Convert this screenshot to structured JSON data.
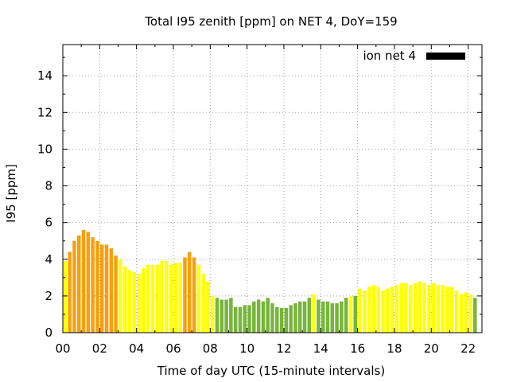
{
  "chart_data": {
    "type": "bar",
    "title": "Total I95 zenith [ppm] on NET 4, DoY=159",
    "xlabel": "Time of day UTC (15-minute intervals)",
    "ylabel": "I95 [ppm]",
    "xlim": [
      0,
      22.75
    ],
    "ylim": [
      0,
      15.7
    ],
    "x_ticks": [
      "00",
      "02",
      "04",
      "06",
      "08",
      "10",
      "12",
      "14",
      "16",
      "18",
      "20",
      "22"
    ],
    "x_tick_values": [
      0,
      2,
      4,
      6,
      8,
      10,
      12,
      14,
      16,
      18,
      20,
      22
    ],
    "y_ticks": [
      "0",
      "2",
      "4",
      "6",
      "8",
      "10",
      "12",
      "14"
    ],
    "y_tick_values": [
      0,
      2,
      4,
      6,
      8,
      10,
      12,
      14
    ],
    "grid": true,
    "legend": {
      "label": "ion net 4",
      "placement": "top-right",
      "color": "#000000"
    },
    "level_colors": {
      "green": "#77b53b",
      "yellow": "#ffff00",
      "orange": "#f5a00f"
    },
    "series": [
      {
        "interval_hours": 0.25,
        "start_hour": 0.25,
        "values": [
          3.9,
          4.4,
          5.0,
          5.3,
          5.6,
          5.5,
          5.2,
          5.0,
          4.8,
          4.8,
          4.6,
          4.2,
          4.0,
          3.6,
          3.4,
          3.3,
          3.2,
          3.5,
          3.7,
          3.7,
          3.7,
          3.9,
          3.9,
          3.7,
          3.8,
          3.8,
          4.1,
          4.4,
          4.1,
          3.7,
          3.2,
          2.8,
          2.0,
          1.9,
          1.8,
          1.8,
          1.9,
          1.4,
          1.4,
          1.5,
          1.5,
          1.7,
          1.8,
          1.7,
          1.9,
          1.6,
          1.4,
          1.35,
          1.35,
          1.5,
          1.6,
          1.7,
          1.7,
          1.9,
          2.1,
          1.8,
          1.7,
          1.7,
          1.6,
          1.6,
          1.7,
          1.9,
          2.0,
          2.0,
          2.4,
          2.3,
          2.5,
          2.6,
          2.5,
          2.3,
          2.4,
          2.5,
          2.6,
          2.7,
          2.7,
          2.6,
          2.7,
          2.8,
          2.7,
          2.6,
          2.7,
          2.6,
          2.6,
          2.5,
          2.5,
          2.3,
          2.1,
          2.2,
          2.1,
          1.9
        ],
        "levels": [
          "yellow",
          "orange",
          "orange",
          "orange",
          "orange",
          "orange",
          "orange",
          "orange",
          "orange",
          "orange",
          "orange",
          "orange",
          "yellow",
          "yellow",
          "yellow",
          "yellow",
          "yellow",
          "yellow",
          "yellow",
          "yellow",
          "yellow",
          "yellow",
          "yellow",
          "yellow",
          "yellow",
          "yellow",
          "orange",
          "orange",
          "orange",
          "yellow",
          "yellow",
          "yellow",
          "yellow",
          "green",
          "green",
          "green",
          "green",
          "green",
          "green",
          "green",
          "green",
          "green",
          "green",
          "green",
          "green",
          "green",
          "green",
          "green",
          "green",
          "green",
          "green",
          "green",
          "green",
          "green",
          "yellow",
          "green",
          "green",
          "green",
          "green",
          "green",
          "green",
          "green",
          "yellow",
          "green",
          "yellow",
          "yellow",
          "yellow",
          "yellow",
          "yellow",
          "yellow",
          "yellow",
          "yellow",
          "yellow",
          "yellow",
          "yellow",
          "yellow",
          "yellow",
          "yellow",
          "yellow",
          "yellow",
          "yellow",
          "yellow",
          "yellow",
          "yellow",
          "yellow",
          "yellow",
          "yellow",
          "yellow",
          "yellow",
          "green"
        ]
      }
    ]
  }
}
